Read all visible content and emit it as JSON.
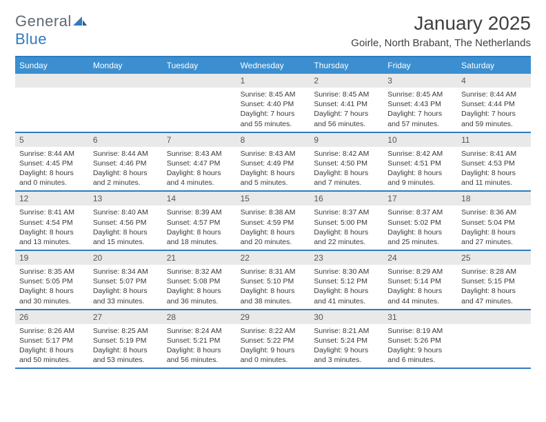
{
  "brand": {
    "word1": "General",
    "word2": "Blue"
  },
  "title": "January 2025",
  "location": "Goirle, North Brabant, The Netherlands",
  "colors": {
    "header_bg": "#3b8fd0",
    "border": "#2f7bbf",
    "daynum_bg": "#e9e9e9",
    "text": "#383838"
  },
  "dow": [
    "Sunday",
    "Monday",
    "Tuesday",
    "Wednesday",
    "Thursday",
    "Friday",
    "Saturday"
  ],
  "weeks": [
    [
      {
        "blank": true
      },
      {
        "blank": true
      },
      {
        "blank": true
      },
      {
        "num": "1",
        "sr": "Sunrise: 8:45 AM",
        "ss": "Sunset: 4:40 PM",
        "d1": "Daylight: 7 hours",
        "d2": "and 55 minutes."
      },
      {
        "num": "2",
        "sr": "Sunrise: 8:45 AM",
        "ss": "Sunset: 4:41 PM",
        "d1": "Daylight: 7 hours",
        "d2": "and 56 minutes."
      },
      {
        "num": "3",
        "sr": "Sunrise: 8:45 AM",
        "ss": "Sunset: 4:43 PM",
        "d1": "Daylight: 7 hours",
        "d2": "and 57 minutes."
      },
      {
        "num": "4",
        "sr": "Sunrise: 8:44 AM",
        "ss": "Sunset: 4:44 PM",
        "d1": "Daylight: 7 hours",
        "d2": "and 59 minutes."
      }
    ],
    [
      {
        "num": "5",
        "sr": "Sunrise: 8:44 AM",
        "ss": "Sunset: 4:45 PM",
        "d1": "Daylight: 8 hours",
        "d2": "and 0 minutes."
      },
      {
        "num": "6",
        "sr": "Sunrise: 8:44 AM",
        "ss": "Sunset: 4:46 PM",
        "d1": "Daylight: 8 hours",
        "d2": "and 2 minutes."
      },
      {
        "num": "7",
        "sr": "Sunrise: 8:43 AM",
        "ss": "Sunset: 4:47 PM",
        "d1": "Daylight: 8 hours",
        "d2": "and 4 minutes."
      },
      {
        "num": "8",
        "sr": "Sunrise: 8:43 AM",
        "ss": "Sunset: 4:49 PM",
        "d1": "Daylight: 8 hours",
        "d2": "and 5 minutes."
      },
      {
        "num": "9",
        "sr": "Sunrise: 8:42 AM",
        "ss": "Sunset: 4:50 PM",
        "d1": "Daylight: 8 hours",
        "d2": "and 7 minutes."
      },
      {
        "num": "10",
        "sr": "Sunrise: 8:42 AM",
        "ss": "Sunset: 4:51 PM",
        "d1": "Daylight: 8 hours",
        "d2": "and 9 minutes."
      },
      {
        "num": "11",
        "sr": "Sunrise: 8:41 AM",
        "ss": "Sunset: 4:53 PM",
        "d1": "Daylight: 8 hours",
        "d2": "and 11 minutes."
      }
    ],
    [
      {
        "num": "12",
        "sr": "Sunrise: 8:41 AM",
        "ss": "Sunset: 4:54 PM",
        "d1": "Daylight: 8 hours",
        "d2": "and 13 minutes."
      },
      {
        "num": "13",
        "sr": "Sunrise: 8:40 AM",
        "ss": "Sunset: 4:56 PM",
        "d1": "Daylight: 8 hours",
        "d2": "and 15 minutes."
      },
      {
        "num": "14",
        "sr": "Sunrise: 8:39 AM",
        "ss": "Sunset: 4:57 PM",
        "d1": "Daylight: 8 hours",
        "d2": "and 18 minutes."
      },
      {
        "num": "15",
        "sr": "Sunrise: 8:38 AM",
        "ss": "Sunset: 4:59 PM",
        "d1": "Daylight: 8 hours",
        "d2": "and 20 minutes."
      },
      {
        "num": "16",
        "sr": "Sunrise: 8:37 AM",
        "ss": "Sunset: 5:00 PM",
        "d1": "Daylight: 8 hours",
        "d2": "and 22 minutes."
      },
      {
        "num": "17",
        "sr": "Sunrise: 8:37 AM",
        "ss": "Sunset: 5:02 PM",
        "d1": "Daylight: 8 hours",
        "d2": "and 25 minutes."
      },
      {
        "num": "18",
        "sr": "Sunrise: 8:36 AM",
        "ss": "Sunset: 5:04 PM",
        "d1": "Daylight: 8 hours",
        "d2": "and 27 minutes."
      }
    ],
    [
      {
        "num": "19",
        "sr": "Sunrise: 8:35 AM",
        "ss": "Sunset: 5:05 PM",
        "d1": "Daylight: 8 hours",
        "d2": "and 30 minutes."
      },
      {
        "num": "20",
        "sr": "Sunrise: 8:34 AM",
        "ss": "Sunset: 5:07 PM",
        "d1": "Daylight: 8 hours",
        "d2": "and 33 minutes."
      },
      {
        "num": "21",
        "sr": "Sunrise: 8:32 AM",
        "ss": "Sunset: 5:08 PM",
        "d1": "Daylight: 8 hours",
        "d2": "and 36 minutes."
      },
      {
        "num": "22",
        "sr": "Sunrise: 8:31 AM",
        "ss": "Sunset: 5:10 PM",
        "d1": "Daylight: 8 hours",
        "d2": "and 38 minutes."
      },
      {
        "num": "23",
        "sr": "Sunrise: 8:30 AM",
        "ss": "Sunset: 5:12 PM",
        "d1": "Daylight: 8 hours",
        "d2": "and 41 minutes."
      },
      {
        "num": "24",
        "sr": "Sunrise: 8:29 AM",
        "ss": "Sunset: 5:14 PM",
        "d1": "Daylight: 8 hours",
        "d2": "and 44 minutes."
      },
      {
        "num": "25",
        "sr": "Sunrise: 8:28 AM",
        "ss": "Sunset: 5:15 PM",
        "d1": "Daylight: 8 hours",
        "d2": "and 47 minutes."
      }
    ],
    [
      {
        "num": "26",
        "sr": "Sunrise: 8:26 AM",
        "ss": "Sunset: 5:17 PM",
        "d1": "Daylight: 8 hours",
        "d2": "and 50 minutes."
      },
      {
        "num": "27",
        "sr": "Sunrise: 8:25 AM",
        "ss": "Sunset: 5:19 PM",
        "d1": "Daylight: 8 hours",
        "d2": "and 53 minutes."
      },
      {
        "num": "28",
        "sr": "Sunrise: 8:24 AM",
        "ss": "Sunset: 5:21 PM",
        "d1": "Daylight: 8 hours",
        "d2": "and 56 minutes."
      },
      {
        "num": "29",
        "sr": "Sunrise: 8:22 AM",
        "ss": "Sunset: 5:22 PM",
        "d1": "Daylight: 9 hours",
        "d2": "and 0 minutes."
      },
      {
        "num": "30",
        "sr": "Sunrise: 8:21 AM",
        "ss": "Sunset: 5:24 PM",
        "d1": "Daylight: 9 hours",
        "d2": "and 3 minutes."
      },
      {
        "num": "31",
        "sr": "Sunrise: 8:19 AM",
        "ss": "Sunset: 5:26 PM",
        "d1": "Daylight: 9 hours",
        "d2": "and 6 minutes."
      },
      {
        "blank": true
      }
    ]
  ]
}
